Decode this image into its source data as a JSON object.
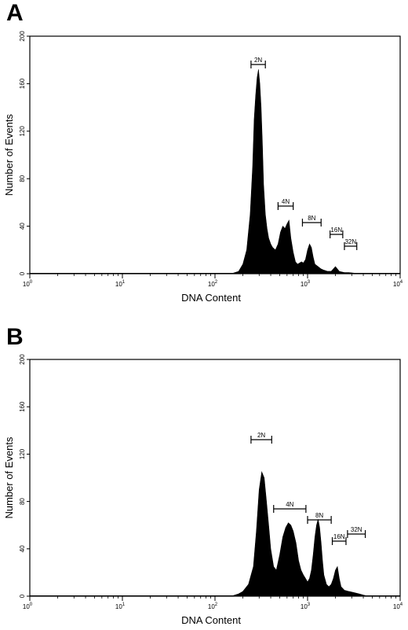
{
  "chart_data": [
    {
      "panel": "A",
      "type": "area",
      "xlabel": "DNA Content",
      "ylabel": "Number of Events",
      "xscale": "log",
      "xlim": [
        1,
        10000
      ],
      "ylim": [
        0,
        200
      ],
      "xticks": [
        {
          "base": "10",
          "exp": "0"
        },
        {
          "base": "10",
          "exp": "1"
        },
        {
          "base": "10",
          "exp": "2"
        },
        {
          "base": "10",
          "exp": "3"
        },
        {
          "base": "10",
          "exp": "4"
        }
      ],
      "yticks": [
        "0",
        "40",
        "80",
        "120",
        "160",
        "200"
      ],
      "series": [
        {
          "x": [
            150,
            180,
            200,
            220,
            240,
            255,
            265,
            275,
            285,
            295,
            305,
            315,
            325,
            335,
            350,
            365,
            380,
            400,
            420,
            450,
            480,
            510,
            540,
            570,
            600,
            630,
            660,
            700,
            740,
            780,
            820,
            860,
            900,
            950,
            1000,
            1050,
            1100,
            1150,
            1200,
            1300,
            1400,
            1500,
            1650,
            1800,
            2000,
            2200,
            2500,
            2800,
            3200,
            3600,
            4000
          ],
          "values": [
            0,
            2,
            8,
            20,
            50,
            90,
            130,
            150,
            165,
            172,
            160,
            140,
            110,
            75,
            50,
            38,
            30,
            25,
            22,
            20,
            25,
            35,
            40,
            38,
            42,
            45,
            30,
            18,
            10,
            8,
            9,
            10,
            9,
            12,
            20,
            25,
            22,
            14,
            8,
            6,
            4,
            3,
            2,
            2,
            6,
            2,
            1,
            1,
            0.5,
            0,
            0
          ]
        }
      ],
      "gates": [
        {
          "label": "2N",
          "x1": 245,
          "x2": 350
        },
        {
          "label": "4N",
          "x1": 480,
          "x2": 700
        },
        {
          "label": "8N",
          "x1": 880,
          "x2": 1400
        },
        {
          "label": "16N",
          "x1": 1750,
          "x2": 2400
        },
        {
          "label": "32N",
          "x1": 2500,
          "x2": 3400
        }
      ]
    },
    {
      "panel": "B",
      "type": "area",
      "xlabel": "DNA Content",
      "ylabel": "Number of Events",
      "xscale": "log",
      "xlim": [
        1,
        10000
      ],
      "ylim": [
        0,
        200
      ],
      "xticks": [
        {
          "base": "10",
          "exp": "0"
        },
        {
          "base": "10",
          "exp": "1"
        },
        {
          "base": "10",
          "exp": "2"
        },
        {
          "base": "10",
          "exp": "3"
        },
        {
          "base": "10",
          "exp": "4"
        }
      ],
      "yticks": [
        "0",
        "40",
        "80",
        "120",
        "160",
        "200"
      ],
      "series": [
        {
          "x": [
            150,
            180,
            200,
            230,
            260,
            280,
            300,
            320,
            340,
            360,
            380,
            400,
            430,
            460,
            500,
            540,
            580,
            620,
            660,
            700,
            750,
            800,
            850,
            900,
            950,
            1000,
            1050,
            1100,
            1150,
            1200,
            1250,
            1300,
            1350,
            1400,
            1450,
            1500,
            1600,
            1700,
            1800,
            1900,
            2000,
            2100,
            2200,
            2300,
            2500,
            2800,
            3200,
            3600,
            4000,
            4500
          ],
          "values": [
            0,
            2,
            4,
            10,
            25,
            55,
            90,
            105,
            100,
            80,
            60,
            40,
            25,
            22,
            35,
            50,
            58,
            62,
            60,
            55,
            45,
            30,
            22,
            18,
            15,
            12,
            15,
            22,
            35,
            50,
            60,
            65,
            58,
            45,
            30,
            18,
            10,
            8,
            10,
            15,
            22,
            25,
            15,
            8,
            5,
            4,
            3,
            2,
            1,
            0
          ]
        }
      ],
      "gates": [
        {
          "label": "2N",
          "x1": 245,
          "x2": 410
        },
        {
          "label": "4N",
          "x1": 430,
          "x2": 960
        },
        {
          "label": "8N",
          "x1": 1000,
          "x2": 1800
        },
        {
          "label": "16N",
          "x1": 1850,
          "x2": 2600
        },
        {
          "label": "32N",
          "x1": 2700,
          "x2": 4200
        }
      ]
    }
  ],
  "panels": {
    "a": {
      "letter": "A"
    },
    "b": {
      "letter": "B"
    }
  }
}
